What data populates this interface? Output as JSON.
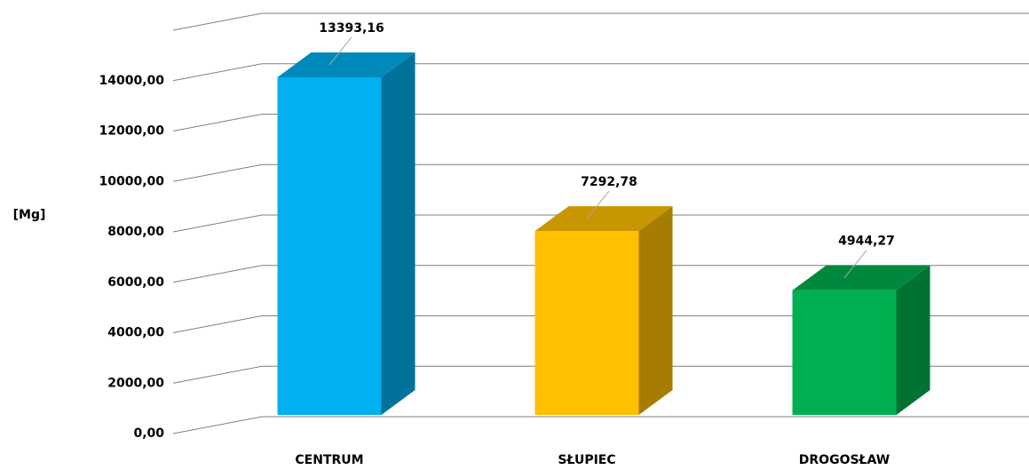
{
  "chart_data": {
    "type": "bar3d",
    "y_label": "[Mg]",
    "categories": [
      "CENTRUM",
      "SŁUPIEC",
      "DROGOSŁAW"
    ],
    "values": [
      13393.16,
      7292.78,
      4944.27
    ],
    "value_labels": [
      "13393,16",
      "7292,78",
      "4944,27"
    ],
    "colors": [
      "#00b0f0",
      "#ffc000",
      "#00b050"
    ],
    "ylim": [
      0,
      16000
    ],
    "yticks": [
      {
        "value": 0,
        "label": "0,00"
      },
      {
        "value": 2000,
        "label": "2000,00"
      },
      {
        "value": 4000,
        "label": "4000,00"
      },
      {
        "value": 6000,
        "label": "6000,00"
      },
      {
        "value": 8000,
        "label": "8000,00"
      },
      {
        "value": 10000,
        "label": "10000,00"
      },
      {
        "value": 12000,
        "label": "12000,00"
      },
      {
        "value": 14000,
        "label": "14000,00"
      }
    ],
    "grid": true
  }
}
